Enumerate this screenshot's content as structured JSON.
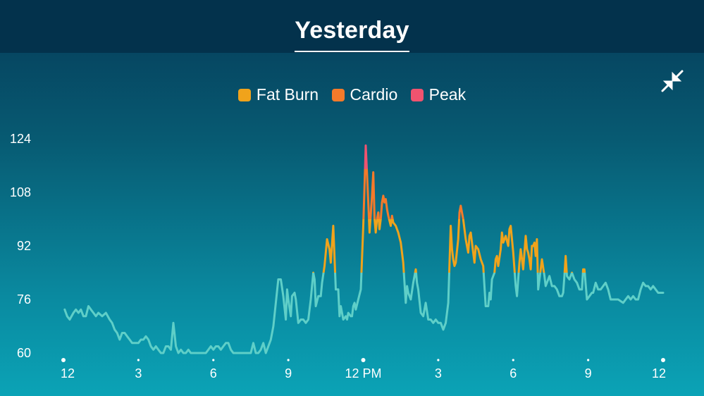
{
  "header": {
    "title": "Yesterday"
  },
  "icons": {
    "collapse": "collapse-arrows-icon"
  },
  "colors": {
    "background_top": "#063b58",
    "background_bottom": "#0ba3b6",
    "header": "#03324c",
    "line_normal": "#5fcfc8",
    "fat_burn": "#f0a31b",
    "cardio": "#f57a2a",
    "peak": "#f0536f"
  },
  "chart_data": {
    "type": "line",
    "title": "",
    "xlabel": "",
    "ylabel": "",
    "ylim": [
      60,
      124
    ],
    "yticks": [
      60,
      76,
      92,
      108,
      124
    ],
    "xlim": [
      0,
      24
    ],
    "xticks": [
      {
        "x": 0,
        "label": "12",
        "major": true
      },
      {
        "x": 3,
        "label": "3",
        "major": false
      },
      {
        "x": 6,
        "label": "6",
        "major": false
      },
      {
        "x": 9,
        "label": "9",
        "major": false
      },
      {
        "x": 12,
        "label": "12 PM",
        "major": true
      },
      {
        "x": 15,
        "label": "3",
        "major": false
      },
      {
        "x": 18,
        "label": "6",
        "major": false
      },
      {
        "x": 21,
        "label": "9",
        "major": false
      },
      {
        "x": 24,
        "label": "12",
        "major": true
      }
    ],
    "legend": [
      {
        "name": "Fat Burn",
        "color": "#f0a31b"
      },
      {
        "name": "Cardio",
        "color": "#f57a2a"
      },
      {
        "name": "Peak",
        "color": "#f0536f"
      }
    ],
    "legend_position": "top-center",
    "zones": {
      "fat_burn_min": 84,
      "cardio_min": 100,
      "peak_min": 115
    },
    "series": [
      {
        "unit_x": "hour of day",
        "unit_y": "bpm",
        "points": [
          [
            0.05,
            73
          ],
          [
            0.15,
            71
          ],
          [
            0.25,
            70
          ],
          [
            0.4,
            72
          ],
          [
            0.5,
            73
          ],
          [
            0.6,
            72
          ],
          [
            0.7,
            73
          ],
          [
            0.8,
            71
          ],
          [
            0.9,
            71
          ],
          [
            1.0,
            74
          ],
          [
            1.1,
            73
          ],
          [
            1.2,
            72
          ],
          [
            1.3,
            71
          ],
          [
            1.4,
            72
          ],
          [
            1.55,
            71
          ],
          [
            1.7,
            72
          ],
          [
            1.85,
            70
          ],
          [
            1.95,
            69
          ],
          [
            2.05,
            67
          ],
          [
            2.15,
            66
          ],
          [
            2.25,
            64
          ],
          [
            2.35,
            66
          ],
          [
            2.45,
            66
          ],
          [
            2.55,
            65
          ],
          [
            2.65,
            64
          ],
          [
            2.75,
            63
          ],
          [
            2.85,
            63
          ],
          [
            3.0,
            63
          ],
          [
            3.1,
            64
          ],
          [
            3.2,
            64
          ],
          [
            3.3,
            65
          ],
          [
            3.4,
            64
          ],
          [
            3.5,
            62
          ],
          [
            3.6,
            61
          ],
          [
            3.7,
            62
          ],
          [
            3.8,
            61
          ],
          [
            3.9,
            60
          ],
          [
            4.0,
            60
          ],
          [
            4.1,
            62
          ],
          [
            4.2,
            62
          ],
          [
            4.3,
            61
          ],
          [
            4.4,
            69
          ],
          [
            4.5,
            62
          ],
          [
            4.6,
            60
          ],
          [
            4.7,
            61
          ],
          [
            4.8,
            60
          ],
          [
            4.9,
            60
          ],
          [
            5.0,
            61
          ],
          [
            5.1,
            60
          ],
          [
            5.3,
            60
          ],
          [
            5.5,
            60
          ],
          [
            5.7,
            60
          ],
          [
            5.8,
            61
          ],
          [
            5.9,
            62
          ],
          [
            6.0,
            61
          ],
          [
            6.1,
            62
          ],
          [
            6.2,
            62
          ],
          [
            6.3,
            61
          ],
          [
            6.4,
            62
          ],
          [
            6.5,
            63
          ],
          [
            6.6,
            63
          ],
          [
            6.7,
            61
          ],
          [
            6.8,
            60
          ],
          [
            7.0,
            60
          ],
          [
            7.2,
            60
          ],
          [
            7.4,
            60
          ],
          [
            7.5,
            60
          ],
          [
            7.6,
            63
          ],
          [
            7.7,
            60
          ],
          [
            7.8,
            60
          ],
          [
            7.9,
            61
          ],
          [
            8.0,
            63
          ],
          [
            8.1,
            60
          ],
          [
            8.2,
            62
          ],
          [
            8.3,
            64
          ],
          [
            8.4,
            68
          ],
          [
            8.5,
            75
          ],
          [
            8.6,
            82
          ],
          [
            8.7,
            82
          ],
          [
            8.8,
            77
          ],
          [
            8.9,
            70
          ],
          [
            8.95,
            79
          ],
          [
            9.0,
            76
          ],
          [
            9.1,
            71
          ],
          [
            9.15,
            77
          ],
          [
            9.25,
            78
          ],
          [
            9.3,
            76
          ],
          [
            9.4,
            69
          ],
          [
            9.5,
            70
          ],
          [
            9.6,
            70
          ],
          [
            9.7,
            69
          ],
          [
            9.8,
            70
          ],
          [
            9.9,
            76
          ],
          [
            10.0,
            84
          ],
          [
            10.05,
            82
          ],
          [
            10.1,
            74
          ],
          [
            10.2,
            77
          ],
          [
            10.3,
            77
          ],
          [
            10.35,
            81
          ],
          [
            10.45,
            86
          ],
          [
            10.55,
            94
          ],
          [
            10.65,
            91
          ],
          [
            10.7,
            87
          ],
          [
            10.8,
            98
          ],
          [
            10.9,
            79
          ],
          [
            11.0,
            79
          ],
          [
            11.05,
            71
          ],
          [
            11.1,
            74
          ],
          [
            11.2,
            70
          ],
          [
            11.3,
            71
          ],
          [
            11.35,
            70
          ],
          [
            11.4,
            72
          ],
          [
            11.5,
            71
          ],
          [
            11.55,
            71
          ],
          [
            11.6,
            74
          ],
          [
            11.65,
            75
          ],
          [
            11.7,
            73
          ],
          [
            11.8,
            76
          ],
          [
            11.9,
            79
          ],
          [
            12.0,
            98
          ],
          [
            12.05,
            110
          ],
          [
            12.1,
            122
          ],
          [
            12.2,
            105
          ],
          [
            12.25,
            96
          ],
          [
            12.35,
            107
          ],
          [
            12.4,
            114
          ],
          [
            12.45,
            100
          ],
          [
            12.5,
            96
          ],
          [
            12.55,
            100
          ],
          [
            12.6,
            102
          ],
          [
            12.65,
            97
          ],
          [
            12.7,
            100
          ],
          [
            12.75,
            105
          ],
          [
            12.8,
            107
          ],
          [
            12.85,
            105
          ],
          [
            12.9,
            106
          ],
          [
            12.95,
            103
          ],
          [
            13.0,
            101
          ],
          [
            13.1,
            98
          ],
          [
            13.15,
            101
          ],
          [
            13.2,
            99
          ],
          [
            13.3,
            98
          ],
          [
            13.4,
            96
          ],
          [
            13.5,
            93
          ],
          [
            13.6,
            87
          ],
          [
            13.7,
            75
          ],
          [
            13.75,
            80
          ],
          [
            13.8,
            78
          ],
          [
            13.9,
            76
          ],
          [
            14.0,
            81
          ],
          [
            14.1,
            85
          ],
          [
            14.15,
            81
          ],
          [
            14.2,
            79
          ],
          [
            14.3,
            72
          ],
          [
            14.4,
            71
          ],
          [
            14.5,
            75
          ],
          [
            14.6,
            70
          ],
          [
            14.7,
            70
          ],
          [
            14.8,
            69
          ],
          [
            14.9,
            70
          ],
          [
            15.0,
            69
          ],
          [
            15.1,
            69
          ],
          [
            15.2,
            67
          ],
          [
            15.3,
            69
          ],
          [
            15.4,
            75
          ],
          [
            15.5,
            98
          ],
          [
            15.55,
            91
          ],
          [
            15.6,
            88
          ],
          [
            15.65,
            86
          ],
          [
            15.7,
            87
          ],
          [
            15.8,
            94
          ],
          [
            15.85,
            102
          ],
          [
            15.9,
            104
          ],
          [
            16.0,
            100
          ],
          [
            16.1,
            94
          ],
          [
            16.2,
            90
          ],
          [
            16.25,
            95
          ],
          [
            16.3,
            96
          ],
          [
            16.4,
            90
          ],
          [
            16.45,
            87
          ],
          [
            16.5,
            92
          ],
          [
            16.6,
            91
          ],
          [
            16.7,
            88
          ],
          [
            16.8,
            86
          ],
          [
            16.9,
            74
          ],
          [
            17.0,
            74
          ],
          [
            17.05,
            78
          ],
          [
            17.1,
            76
          ],
          [
            17.15,
            82
          ],
          [
            17.25,
            84
          ],
          [
            17.3,
            88
          ],
          [
            17.35,
            89
          ],
          [
            17.4,
            86
          ],
          [
            17.5,
            91
          ],
          [
            17.55,
            96
          ],
          [
            17.6,
            93
          ],
          [
            17.7,
            95
          ],
          [
            17.8,
            92
          ],
          [
            17.85,
            97
          ],
          [
            17.9,
            98
          ],
          [
            18.0,
            90
          ],
          [
            18.1,
            80
          ],
          [
            18.15,
            77
          ],
          [
            18.25,
            87
          ],
          [
            18.3,
            91
          ],
          [
            18.35,
            88
          ],
          [
            18.4,
            85
          ],
          [
            18.45,
            90
          ],
          [
            18.5,
            95
          ],
          [
            18.55,
            91
          ],
          [
            18.6,
            90
          ],
          [
            18.65,
            88
          ],
          [
            18.7,
            85
          ],
          [
            18.75,
            92
          ],
          [
            18.8,
            92
          ],
          [
            18.85,
            93
          ],
          [
            18.9,
            89
          ],
          [
            18.95,
            94
          ],
          [
            19.0,
            79
          ],
          [
            19.1,
            85
          ],
          [
            19.15,
            88
          ],
          [
            19.25,
            83
          ],
          [
            19.3,
            80
          ],
          [
            19.35,
            81
          ],
          [
            19.45,
            83
          ],
          [
            19.55,
            80
          ],
          [
            19.65,
            80
          ],
          [
            19.75,
            79
          ],
          [
            19.85,
            77
          ],
          [
            19.95,
            77
          ],
          [
            20.0,
            78
          ],
          [
            20.05,
            83
          ],
          [
            20.1,
            89
          ],
          [
            20.15,
            83
          ],
          [
            20.25,
            82
          ],
          [
            20.35,
            84
          ],
          [
            20.45,
            82
          ],
          [
            20.55,
            81
          ],
          [
            20.65,
            79
          ],
          [
            20.75,
            79
          ],
          [
            20.8,
            85
          ],
          [
            20.85,
            85
          ],
          [
            20.95,
            76
          ],
          [
            21.05,
            77
          ],
          [
            21.15,
            78
          ],
          [
            21.2,
            78
          ],
          [
            21.3,
            81
          ],
          [
            21.4,
            79
          ],
          [
            21.5,
            79
          ],
          [
            21.6,
            80
          ],
          [
            21.7,
            81
          ],
          [
            21.8,
            79
          ],
          [
            21.9,
            76
          ],
          [
            22.0,
            76
          ],
          [
            22.2,
            76
          ],
          [
            22.4,
            75
          ],
          [
            22.5,
            76
          ],
          [
            22.6,
            77
          ],
          [
            22.7,
            76
          ],
          [
            22.8,
            77
          ],
          [
            22.9,
            76
          ],
          [
            23.0,
            76
          ],
          [
            23.1,
            79
          ],
          [
            23.2,
            81
          ],
          [
            23.3,
            80
          ],
          [
            23.4,
            80
          ],
          [
            23.5,
            79
          ],
          [
            23.6,
            80
          ],
          [
            23.7,
            79
          ],
          [
            23.8,
            78
          ],
          [
            23.9,
            78
          ],
          [
            24.0,
            78
          ]
        ]
      }
    ]
  }
}
